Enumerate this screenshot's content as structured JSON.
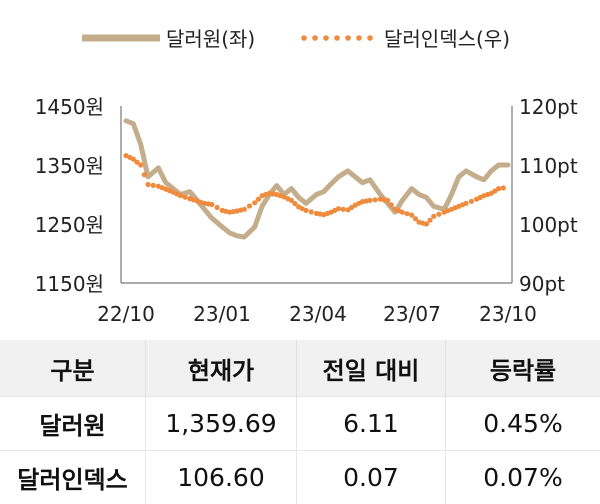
{
  "chart_data": {
    "type": "line",
    "legend_position": "top",
    "grid": false,
    "x_ticks": [
      "22/10",
      "23/01",
      "23/04",
      "23/07",
      "23/10"
    ],
    "y_left": {
      "ticks": [
        "1450원",
        "1350원",
        "1250원",
        "1150원"
      ],
      "range": [
        1150,
        1450
      ],
      "unit": "원"
    },
    "y_right": {
      "ticks": [
        "120pt",
        "110pt",
        "100pt",
        "90pt"
      ],
      "range": [
        90,
        120
      ],
      "unit": "pt"
    },
    "series": [
      {
        "name": "달러원(좌)",
        "axis": "left",
        "style": "solid",
        "color": "#c4ad8b",
        "dates": [
          "2022-10-01",
          "2022-10-08",
          "2022-10-15",
          "2022-10-22",
          "2022-11-01",
          "2022-11-08",
          "2022-11-15",
          "2022-11-22",
          "2022-12-01",
          "2022-12-08",
          "2022-12-15",
          "2022-12-22",
          "2023-01-01",
          "2023-01-08",
          "2023-01-15",
          "2023-01-22",
          "2023-02-01",
          "2023-02-08",
          "2023-02-15",
          "2023-02-22",
          "2023-03-01",
          "2023-03-08",
          "2023-03-15",
          "2023-03-22",
          "2023-04-01",
          "2023-04-08",
          "2023-04-15",
          "2023-04-22",
          "2023-05-01",
          "2023-05-08",
          "2023-05-15",
          "2023-05-22",
          "2023-06-01",
          "2023-06-08",
          "2023-06-15",
          "2023-06-22",
          "2023-07-01",
          "2023-07-08",
          "2023-07-15",
          "2023-07-22",
          "2023-08-01",
          "2023-08-08",
          "2023-08-15",
          "2023-08-22",
          "2023-09-01",
          "2023-09-08",
          "2023-09-15",
          "2023-09-22",
          "2023-10-01"
        ],
        "values": [
          1425,
          1420,
          1385,
          1330,
          1345,
          1320,
          1310,
          1300,
          1305,
          1290,
          1275,
          1260,
          1245,
          1235,
          1230,
          1228,
          1245,
          1280,
          1300,
          1315,
          1300,
          1310,
          1295,
          1285,
          1300,
          1305,
          1318,
          1330,
          1340,
          1330,
          1320,
          1325,
          1300,
          1285,
          1270,
          1290,
          1310,
          1300,
          1295,
          1280,
          1275,
          1300,
          1330,
          1340,
          1330,
          1325,
          1340,
          1350,
          1350
        ]
      },
      {
        "name": "달러인덱스(우)",
        "axis": "right",
        "style": "dotted",
        "color": "#f08a3c",
        "dates": [
          "2022-10-01",
          "2022-10-08",
          "2022-10-15",
          "2022-10-22",
          "2022-11-01",
          "2022-11-08",
          "2022-11-15",
          "2022-11-22",
          "2022-12-01",
          "2022-12-08",
          "2022-12-15",
          "2022-12-22",
          "2023-01-01",
          "2023-01-08",
          "2023-01-15",
          "2023-01-22",
          "2023-02-01",
          "2023-02-08",
          "2023-02-15",
          "2023-02-22",
          "2023-03-01",
          "2023-03-08",
          "2023-03-15",
          "2023-03-22",
          "2023-04-01",
          "2023-04-08",
          "2023-04-15",
          "2023-04-22",
          "2023-05-01",
          "2023-05-08",
          "2023-05-15",
          "2023-05-22",
          "2023-06-01",
          "2023-06-08",
          "2023-06-15",
          "2023-06-22",
          "2023-07-01",
          "2023-07-08",
          "2023-07-15",
          "2023-07-22",
          "2023-08-01",
          "2023-08-08",
          "2023-08-15",
          "2023-08-22",
          "2023-09-01",
          "2023-09-08",
          "2023-09-15",
          "2023-09-22",
          "2023-10-01"
        ],
        "values": [
          111.6,
          111.0,
          110.0,
          106.7,
          106.4,
          105.9,
          105.4,
          104.8,
          104.3,
          103.9,
          103.5,
          103.3,
          102.3,
          102.0,
          102.2,
          102.5,
          103.6,
          104.8,
          105.2,
          105.0,
          104.6,
          104.0,
          102.9,
          102.3,
          101.8,
          101.6,
          102.0,
          102.6,
          102.4,
          103.2,
          103.8,
          104.0,
          104.2,
          104.0,
          102.5,
          102.0,
          101.5,
          100.3,
          100.0,
          101.3,
          102.0,
          102.5,
          103.0,
          103.5,
          104.2,
          104.8,
          105.2,
          106.0,
          106.2
        ]
      }
    ]
  },
  "table": {
    "headers": [
      "구분",
      "현재가",
      "전일 대비",
      "등락률"
    ],
    "rows": [
      [
        "달러원",
        "1,359.69",
        "6.11",
        "0.45%"
      ],
      [
        "달러인덱스",
        "106.60",
        "0.07",
        "0.07%"
      ]
    ]
  }
}
